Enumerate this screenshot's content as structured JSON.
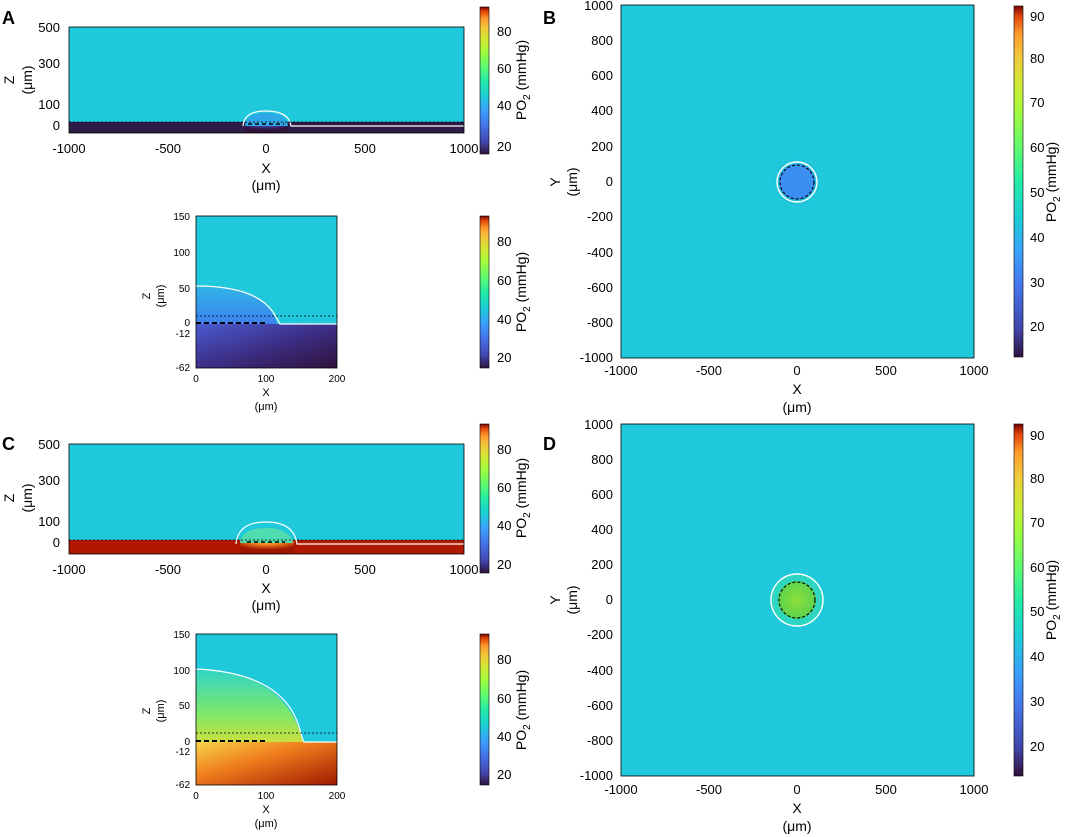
{
  "panels": {
    "A": {
      "label": "A"
    },
    "B": {
      "label": "B"
    },
    "C": {
      "label": "C"
    },
    "D": {
      "label": "D"
    }
  },
  "colorbar": {
    "label": "PO",
    "label_sub": "2",
    "label_unit": " (mmHg)",
    "range": [
      15,
      92
    ]
  },
  "colors": {
    "background_po2": "#1fc8da",
    "low_cell": "#3b8ff0",
    "dark_substrate": "#2f1b48",
    "hot_substrate": "#b01800",
    "green_cell": "#7ad43a"
  },
  "chart_data": [
    {
      "id": "A-main",
      "type": "heatmap",
      "xlabel": "X",
      "xunit": "(μm)",
      "ylabel": "Z",
      "yunit": "(μm)",
      "xlim": [
        -1000,
        1000
      ],
      "ylim": [
        -62,
        500
      ],
      "xticks": [
        -1000,
        -500,
        0,
        500,
        1000
      ],
      "yticks": [
        0,
        100,
        300,
        500
      ],
      "colorbar_ticks": [
        20,
        40,
        60,
        80
      ]
    },
    {
      "id": "A-inset",
      "type": "heatmap",
      "xlabel": "X",
      "xunit": "(μm)",
      "ylabel": "Z",
      "yunit": "(μm)",
      "xlim": [
        0,
        200
      ],
      "ylim": [
        -62,
        150
      ],
      "xticks": [
        0,
        100,
        200
      ],
      "yticks": [
        -62,
        -12,
        0,
        50,
        100,
        150
      ],
      "colorbar_ticks": [
        20,
        40,
        60,
        80
      ]
    },
    {
      "id": "B",
      "type": "heatmap",
      "xlabel": "X",
      "xunit": "(μm)",
      "ylabel": "Y",
      "yunit": "(μm)",
      "xlim": [
        -1000,
        1000
      ],
      "ylim": [
        -1000,
        1000
      ],
      "xticks": [
        -1000,
        -500,
        0,
        500,
        1000
      ],
      "yticks": [
        -1000,
        -800,
        -600,
        -400,
        -200,
        0,
        200,
        400,
        600,
        800,
        1000
      ],
      "colorbar_ticks": [
        20,
        30,
        40,
        50,
        60,
        70,
        80,
        90
      ]
    },
    {
      "id": "C-main",
      "type": "heatmap",
      "xlabel": "X",
      "xunit": "(μm)",
      "ylabel": "Z",
      "yunit": "(μm)",
      "xlim": [
        -1000,
        1000
      ],
      "ylim": [
        -62,
        500
      ],
      "xticks": [
        -1000,
        -500,
        0,
        500,
        1000
      ],
      "yticks": [
        0,
        100,
        300,
        500
      ],
      "colorbar_ticks": [
        20,
        40,
        60,
        80
      ]
    },
    {
      "id": "C-inset",
      "type": "heatmap",
      "xlabel": "X",
      "xunit": "(μm)",
      "ylabel": "Z",
      "yunit": "(μm)",
      "xlim": [
        0,
        200
      ],
      "ylim": [
        -62,
        150
      ],
      "xticks": [
        0,
        100,
        200
      ],
      "yticks": [
        -62,
        -12,
        0,
        50,
        100,
        150
      ],
      "colorbar_ticks": [
        20,
        40,
        60,
        80
      ]
    },
    {
      "id": "D",
      "type": "heatmap",
      "xlabel": "X",
      "xunit": "(μm)",
      "ylabel": "Y",
      "yunit": "(μm)",
      "xlim": [
        -1000,
        1000
      ],
      "ylim": [
        -1000,
        1000
      ],
      "xticks": [
        -1000,
        -500,
        0,
        500,
        1000
      ],
      "yticks": [
        -1000,
        -800,
        -600,
        -400,
        -200,
        0,
        200,
        400,
        600,
        800,
        1000
      ],
      "colorbar_ticks": [
        20,
        30,
        40,
        50,
        60,
        70,
        80,
        90
      ]
    }
  ]
}
